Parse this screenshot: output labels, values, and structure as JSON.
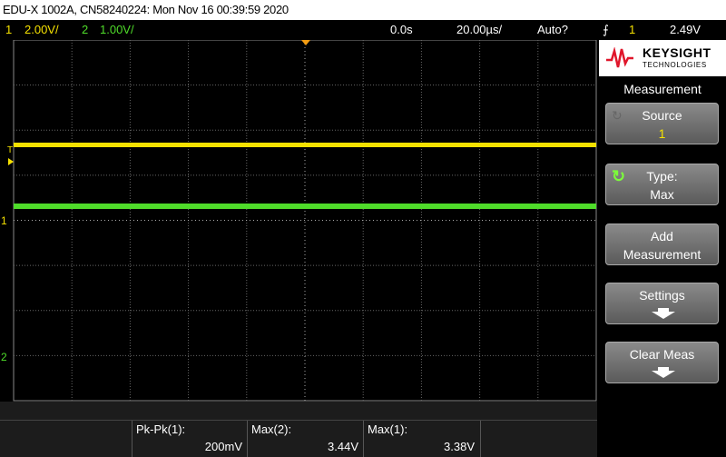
{
  "header": {
    "title": "EDU-X 1002A, CN58240224: Mon Nov 16 00:39:59 2020"
  },
  "status_bar": {
    "channels": [
      {
        "number": "1",
        "scale": "2.00V/"
      },
      {
        "number": "2",
        "scale": "1.00V/"
      }
    ],
    "time_offset": "0.0s",
    "time_scale": "20.00µs/",
    "trigger_mode": "Auto?",
    "trigger_source": "1",
    "trigger_level": "2.49V"
  },
  "markers": {
    "trigger": "T",
    "channel_1": "1",
    "channel_2": "2"
  },
  "logo": {
    "brand": "KEYSIGHT",
    "sub": "TECHNOLOGIES"
  },
  "menu": {
    "title": "Measurement",
    "buttons": [
      {
        "label": "Source",
        "value": "1"
      },
      {
        "label": "Type:",
        "value": "Max"
      },
      {
        "label": "Add",
        "label_line2": "Measurement"
      },
      {
        "label": "Settings"
      },
      {
        "label": "Clear Meas"
      }
    ]
  },
  "measurements": [
    {
      "label": "Pk-Pk(1):",
      "value": "200mV"
    },
    {
      "label": "Max(2):",
      "value": "3.44V"
    },
    {
      "label": "Max(1):",
      "value": "3.38V"
    }
  ]
}
